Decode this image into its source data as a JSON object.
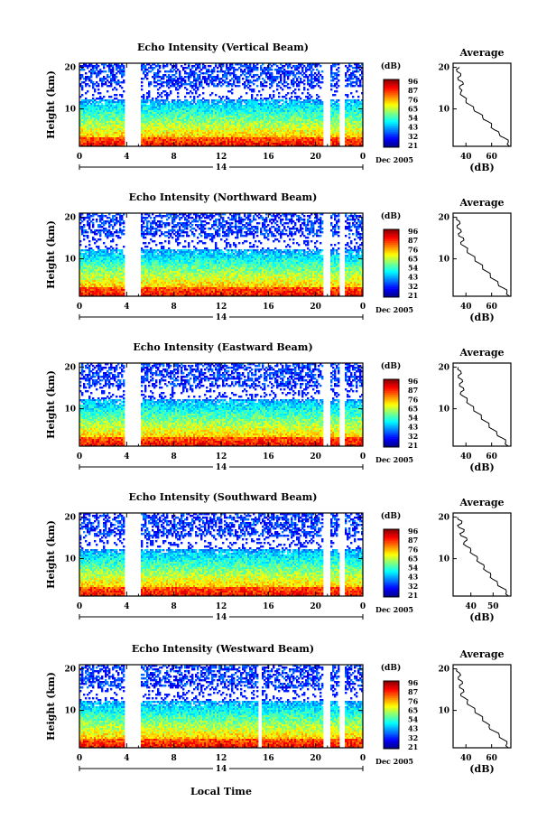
{
  "chart_data": [
    {
      "type": "heatmap",
      "title": "Echo Intensity (Vertical Beam)",
      "ylabel": "Height (km)",
      "yticks": [
        "20",
        "10"
      ],
      "xticks": [
        "0",
        "4",
        "8",
        "12",
        "16",
        "20",
        "0"
      ],
      "date_center": "14",
      "date_label": "Dec 2005",
      "colorbar_unit": "(dB)",
      "colorbar_ticks": [
        "96",
        "87",
        "76",
        "65",
        "54",
        "43",
        "32",
        "21"
      ],
      "avg_title": "Average",
      "avg_yticks": [
        "20",
        "10"
      ],
      "avg_xticks": [
        "40",
        "60"
      ],
      "avg_xlabel": "(dB)",
      "avg_xlim": [
        30,
        75
      ],
      "avg_profile": [
        [
          74,
          1
        ],
        [
          73,
          2
        ],
        [
          70,
          3
        ],
        [
          66,
          4
        ],
        [
          62,
          5
        ],
        [
          60,
          6
        ],
        [
          57,
          7
        ],
        [
          53,
          8
        ],
        [
          50,
          9
        ],
        [
          46,
          10
        ],
        [
          43,
          11
        ],
        [
          40,
          12
        ],
        [
          38,
          13
        ],
        [
          36,
          14
        ],
        [
          35,
          15
        ],
        [
          38,
          16
        ],
        [
          34,
          17
        ],
        [
          36,
          18
        ],
        [
          33,
          19
        ],
        [
          35,
          20
        ]
      ],
      "gaps": [
        [
          3.8,
          5.2
        ],
        [
          20.6,
          21.3
        ],
        [
          22.0,
          22.5
        ]
      ]
    },
    {
      "type": "heatmap",
      "title": "Echo Intensity (Northward Beam)",
      "ylabel": "Height (km)",
      "yticks": [
        "20",
        "10"
      ],
      "xticks": [
        "0",
        "4",
        "8",
        "12",
        "16",
        "20",
        "0"
      ],
      "date_center": "14",
      "date_label": "Dec 2005",
      "colorbar_unit": "(dB)",
      "colorbar_ticks": [
        "96",
        "87",
        "76",
        "65",
        "54",
        "43",
        "32",
        "21"
      ],
      "avg_title": "Average",
      "avg_yticks": [
        "20",
        "10"
      ],
      "avg_xticks": [
        "40",
        "60"
      ],
      "avg_xlabel": "(dB)",
      "avg_xlim": [
        30,
        75
      ],
      "avg_profile": [
        [
          74,
          1
        ],
        [
          72,
          2
        ],
        [
          69,
          3
        ],
        [
          65,
          4
        ],
        [
          62,
          5
        ],
        [
          59,
          6
        ],
        [
          56,
          7
        ],
        [
          53,
          8
        ],
        [
          50,
          9
        ],
        [
          47,
          10
        ],
        [
          44,
          11
        ],
        [
          41,
          12
        ],
        [
          39,
          13
        ],
        [
          36,
          14
        ],
        [
          38,
          15
        ],
        [
          34,
          16
        ],
        [
          36,
          17
        ],
        [
          33,
          18
        ],
        [
          35,
          19
        ],
        [
          33,
          20
        ]
      ],
      "gaps": [
        [
          3.8,
          5.2
        ],
        [
          20.6,
          21.3
        ],
        [
          22.0,
          22.5
        ]
      ]
    },
    {
      "type": "heatmap",
      "title": "Echo Intensity (Eastward Beam)",
      "ylabel": "Height (km)",
      "yticks": [
        "20",
        "10"
      ],
      "xticks": [
        "0",
        "4",
        "8",
        "12",
        "16",
        "20",
        "0"
      ],
      "date_center": "14",
      "date_label": "Dec 2005",
      "colorbar_unit": "(dB)",
      "colorbar_ticks": [
        "96",
        "87",
        "76",
        "65",
        "54",
        "43",
        "32",
        "21"
      ],
      "avg_title": "Average",
      "avg_yticks": [
        "20",
        "10"
      ],
      "avg_xticks": [
        "40",
        "60"
      ],
      "avg_xlabel": "(dB)",
      "avg_xlim": [
        30,
        75
      ],
      "avg_profile": [
        [
          73,
          1
        ],
        [
          71,
          2
        ],
        [
          68,
          3
        ],
        [
          64,
          4
        ],
        [
          61,
          5
        ],
        [
          58,
          6
        ],
        [
          55,
          7
        ],
        [
          52,
          8
        ],
        [
          49,
          9
        ],
        [
          46,
          10
        ],
        [
          43,
          11
        ],
        [
          41,
          12
        ],
        [
          38,
          13
        ],
        [
          36,
          14
        ],
        [
          38,
          15
        ],
        [
          35,
          16
        ],
        [
          37,
          17
        ],
        [
          34,
          18
        ],
        [
          36,
          19
        ],
        [
          34,
          20
        ]
      ],
      "gaps": [
        [
          3.8,
          5.2
        ],
        [
          20.6,
          21.3
        ],
        [
          22.0,
          22.5
        ]
      ]
    },
    {
      "type": "heatmap",
      "title": "Echo Intensity (Southward Beam)",
      "ylabel": "Height (km)",
      "yticks": [
        "20",
        "10"
      ],
      "xticks": [
        "0",
        "4",
        "8",
        "12",
        "16",
        "20",
        "0"
      ],
      "date_center": "14",
      "date_label": "Dec 2005",
      "colorbar_unit": "(dB)",
      "colorbar_ticks": [
        "96",
        "87",
        "76",
        "65",
        "54",
        "43",
        "32",
        "21"
      ],
      "avg_title": "Average",
      "avg_yticks": [
        "20",
        "10"
      ],
      "avg_xticks": [
        "40",
        "50"
      ],
      "avg_xlabel": "(dB)",
      "avg_xlim": [
        32,
        58
      ],
      "avg_profile": [
        [
          57,
          1
        ],
        [
          56,
          2
        ],
        [
          54,
          3
        ],
        [
          52,
          4
        ],
        [
          50,
          5
        ],
        [
          49,
          6
        ],
        [
          47,
          7
        ],
        [
          46,
          8
        ],
        [
          44,
          9
        ],
        [
          43,
          10
        ],
        [
          41,
          11
        ],
        [
          40,
          12
        ],
        [
          38,
          13
        ],
        [
          37,
          14
        ],
        [
          38,
          15
        ],
        [
          35,
          16
        ],
        [
          37,
          17
        ],
        [
          34,
          18
        ],
        [
          36,
          19
        ],
        [
          34,
          20
        ]
      ],
      "gaps": [
        [
          3.8,
          5.2
        ],
        [
          20.6,
          21.3
        ],
        [
          22.0,
          22.5
        ]
      ]
    },
    {
      "type": "heatmap",
      "title": "Echo Intensity (Westward Beam)",
      "ylabel": "Height (km)",
      "yticks": [
        "20",
        "10"
      ],
      "xticks": [
        "0",
        "4",
        "8",
        "12",
        "16",
        "20",
        "0"
      ],
      "date_center": "14",
      "date_label": "Dec 2005",
      "colorbar_unit": "(dB)",
      "colorbar_ticks": [
        "96",
        "87",
        "76",
        "65",
        "54",
        "43",
        "32",
        "21"
      ],
      "avg_title": "Average",
      "avg_yticks": [
        "20",
        "10"
      ],
      "avg_xticks": [
        "40",
        "60"
      ],
      "avg_xlabel": "(dB)",
      "avg_xlim": [
        30,
        75
      ],
      "avg_profile": [
        [
          73,
          1
        ],
        [
          72,
          2
        ],
        [
          69,
          3
        ],
        [
          66,
          4
        ],
        [
          62,
          5
        ],
        [
          58,
          6
        ],
        [
          56,
          7
        ],
        [
          53,
          8
        ],
        [
          50,
          9
        ],
        [
          47,
          10
        ],
        [
          44,
          11
        ],
        [
          41,
          12
        ],
        [
          39,
          13
        ],
        [
          36,
          14
        ],
        [
          38,
          15
        ],
        [
          35,
          16
        ],
        [
          37,
          17
        ],
        [
          34,
          18
        ],
        [
          35,
          19
        ],
        [
          33,
          20
        ]
      ],
      "gaps": [
        [
          3.8,
          5.2
        ],
        [
          15.2,
          15.4
        ],
        [
          20.6,
          21.3
        ],
        [
          22.0,
          22.5
        ]
      ]
    }
  ],
  "xlabel": "Local Time"
}
